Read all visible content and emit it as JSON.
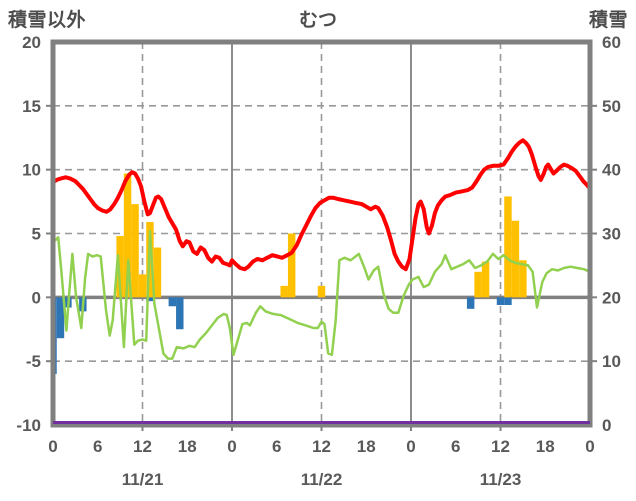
{
  "header": {
    "left_axis_title": "積雪以外",
    "title": "むつ",
    "right_axis_title": "積雪"
  },
  "colors": {
    "red_line": "#ff0000",
    "green_line": "#92d050",
    "orange_bar": "#ffc000",
    "blue_bar": "#2e75b6",
    "purple_line": "#7030a0",
    "border_gray": "#808080",
    "grid_gray": "#999999",
    "label_gray": "#595959"
  },
  "chart_data": {
    "type": "combo (line + bar), 3-day hourly weather chart",
    "left_axis": {
      "min": -10,
      "max": 20,
      "tick_interval": 5,
      "ticks": [
        "20",
        "15",
        "10",
        "5",
        "0",
        "-5",
        "-10"
      ]
    },
    "right_axis": {
      "min": 0,
      "max": 60,
      "tick_interval": 10,
      "ticks": [
        "60",
        "50",
        "40",
        "30",
        "20",
        "10",
        "0"
      ]
    },
    "x_axis": {
      "hours_span": 72,
      "hour_labels": [
        "0",
        "6",
        "12",
        "18",
        "0",
        "6",
        "12",
        "18",
        "0",
        "6",
        "12",
        "18",
        "0"
      ],
      "hour_label_step": 6,
      "day_labels": [
        "11/21",
        "11/22",
        "11/23"
      ],
      "solid_gridlines_at_hours": [
        24,
        48
      ],
      "dashed_gridlines_at_hours": [
        12,
        36,
        60
      ]
    },
    "series": [
      {
        "name": "line-red",
        "type": "line",
        "axis": "left",
        "color": "#ff0000",
        "width": 4,
        "points": [
          [
            0,
            9.0
          ],
          [
            0.5,
            9.2
          ],
          [
            1,
            9.3
          ],
          [
            1.7,
            9.4
          ],
          [
            2.3,
            9.3
          ],
          [
            3,
            9.1
          ],
          [
            3.5,
            8.8
          ],
          [
            4,
            8.5
          ],
          [
            4.5,
            8.1
          ],
          [
            5,
            7.7
          ],
          [
            5.5,
            7.3
          ],
          [
            6,
            7.0
          ],
          [
            6.6,
            6.8
          ],
          [
            7.2,
            6.7
          ],
          [
            7.7,
            6.9
          ],
          [
            8.2,
            7.3
          ],
          [
            8.7,
            7.8
          ],
          [
            9.2,
            8.4
          ],
          [
            9.7,
            9.1
          ],
          [
            10.2,
            9.6
          ],
          [
            10.6,
            9.8
          ],
          [
            11,
            9.7
          ],
          [
            11.4,
            9.3
          ],
          [
            11.8,
            8.7
          ],
          [
            12.3,
            7.4
          ],
          [
            12.7,
            6.5
          ],
          [
            13,
            6.6
          ],
          [
            13.4,
            7.2
          ],
          [
            13.8,
            7.8
          ],
          [
            14.1,
            7.9
          ],
          [
            14.5,
            7.7
          ],
          [
            15,
            7.0
          ],
          [
            15.5,
            6.3
          ],
          [
            16,
            5.8
          ],
          [
            16.5,
            5.3
          ],
          [
            17,
            4.4
          ],
          [
            17.4,
            4.0
          ],
          [
            17.9,
            4.4
          ],
          [
            18.3,
            4.3
          ],
          [
            18.8,
            3.6
          ],
          [
            19.3,
            3.4
          ],
          [
            19.8,
            3.9
          ],
          [
            20.3,
            3.7
          ],
          [
            20.8,
            3.1
          ],
          [
            21.3,
            2.8
          ],
          [
            21.8,
            3.2
          ],
          [
            22.3,
            3.1
          ],
          [
            22.8,
            2.7
          ],
          [
            23.3,
            2.6
          ],
          [
            23.7,
            2.5
          ],
          [
            24,
            2.9
          ],
          [
            24.5,
            2.6
          ],
          [
            25.1,
            2.3
          ],
          [
            25.7,
            2.2
          ],
          [
            26.2,
            2.4
          ],
          [
            26.8,
            2.8
          ],
          [
            27.4,
            3.0
          ],
          [
            28.1,
            2.9
          ],
          [
            28.7,
            3.1
          ],
          [
            29.4,
            3.3
          ],
          [
            30.1,
            3.2
          ],
          [
            30.7,
            3.1
          ],
          [
            31.4,
            3.3
          ],
          [
            32,
            3.5
          ],
          [
            32.7,
            4.1
          ],
          [
            33.3,
            4.9
          ],
          [
            34,
            5.7
          ],
          [
            34.6,
            6.4
          ],
          [
            35.2,
            7.0
          ],
          [
            35.8,
            7.4
          ],
          [
            36.4,
            7.6
          ],
          [
            37,
            7.8
          ],
          [
            37.6,
            7.8
          ],
          [
            38.2,
            7.7
          ],
          [
            39,
            7.6
          ],
          [
            39.8,
            7.5
          ],
          [
            40.6,
            7.4
          ],
          [
            41.4,
            7.3
          ],
          [
            42,
            7.1
          ],
          [
            42.6,
            6.9
          ],
          [
            43.2,
            7.1
          ],
          [
            43.6,
            7.0
          ],
          [
            44.2,
            6.4
          ],
          [
            44.8,
            5.5
          ],
          [
            45.3,
            4.5
          ],
          [
            45.8,
            3.4
          ],
          [
            46.3,
            2.8
          ],
          [
            46.8,
            2.4
          ],
          [
            47.3,
            2.2
          ],
          [
            47.8,
            3.0
          ],
          [
            48.2,
            4.6
          ],
          [
            48.6,
            6.2
          ],
          [
            49,
            7.3
          ],
          [
            49.3,
            7.5
          ],
          [
            49.7,
            6.9
          ],
          [
            50.1,
            5.5
          ],
          [
            50.4,
            5.0
          ],
          [
            50.8,
            5.6
          ],
          [
            51.2,
            6.6
          ],
          [
            51.6,
            7.2
          ],
          [
            52.1,
            7.6
          ],
          [
            52.6,
            7.9
          ],
          [
            53.2,
            8.0
          ],
          [
            54,
            8.2
          ],
          [
            54.8,
            8.3
          ],
          [
            55.6,
            8.4
          ],
          [
            56.2,
            8.6
          ],
          [
            56.8,
            9.1
          ],
          [
            57.3,
            9.6
          ],
          [
            57.8,
            10.0
          ],
          [
            58.3,
            10.2
          ],
          [
            59,
            10.3
          ],
          [
            59.7,
            10.3
          ],
          [
            60.4,
            10.4
          ],
          [
            61,
            10.9
          ],
          [
            61.5,
            11.4
          ],
          [
            62,
            11.8
          ],
          [
            62.5,
            12.1
          ],
          [
            63,
            12.3
          ],
          [
            63.4,
            12.1
          ],
          [
            63.8,
            11.8
          ],
          [
            64.2,
            11.2
          ],
          [
            64.7,
            10.2
          ],
          [
            65.1,
            9.5
          ],
          [
            65.4,
            9.2
          ],
          [
            65.8,
            9.7
          ],
          [
            66.1,
            10.2
          ],
          [
            66.4,
            10.4
          ],
          [
            66.8,
            10.0
          ],
          [
            67.1,
            9.7
          ],
          [
            67.5,
            9.9
          ],
          [
            68,
            10.2
          ],
          [
            68.5,
            10.4
          ],
          [
            69,
            10.3
          ],
          [
            69.6,
            10.1
          ],
          [
            70.1,
            9.9
          ],
          [
            70.6,
            9.5
          ],
          [
            71.1,
            9.1
          ],
          [
            71.6,
            8.8
          ],
          [
            72,
            8.5
          ]
        ]
      },
      {
        "name": "line-green",
        "type": "line",
        "axis": "left",
        "color": "#92d050",
        "width": 2.5,
        "points": [
          [
            0,
            4.3
          ],
          [
            0.7,
            4.7
          ],
          [
            1.1,
            2.2
          ],
          [
            1.8,
            -2.6
          ],
          [
            2.2,
            0.5
          ],
          [
            2.6,
            3.4
          ],
          [
            3.1,
            0.0
          ],
          [
            3.8,
            -2.4
          ],
          [
            4.3,
            1.5
          ],
          [
            4.7,
            3.4
          ],
          [
            5.3,
            3.2
          ],
          [
            5.9,
            3.3
          ],
          [
            6.4,
            3.2
          ],
          [
            7.1,
            -1.0
          ],
          [
            7.6,
            -3.0
          ],
          [
            8.0,
            -1.8
          ],
          [
            8.7,
            3.3
          ],
          [
            9.5,
            -3.9
          ],
          [
            10.1,
            2.9
          ],
          [
            10.9,
            -3.7
          ],
          [
            11.4,
            -3.4
          ],
          [
            12.0,
            -3.3
          ],
          [
            12.5,
            -3.4
          ],
          [
            13.0,
            5.2
          ],
          [
            13.6,
            -0.5
          ],
          [
            14.0,
            -1.8
          ],
          [
            14.8,
            -4.4
          ],
          [
            15.4,
            -4.8
          ],
          [
            16.0,
            -4.8
          ],
          [
            16.6,
            -3.9
          ],
          [
            17.5,
            -4.0
          ],
          [
            18.3,
            -3.8
          ],
          [
            19.0,
            -3.9
          ],
          [
            19.7,
            -3.3
          ],
          [
            20.5,
            -2.8
          ],
          [
            21.3,
            -2.2
          ],
          [
            22.1,
            -1.6
          ],
          [
            22.9,
            -1.3
          ],
          [
            23.3,
            -1.4
          ],
          [
            23.7,
            -2.4
          ],
          [
            24.2,
            -4.5
          ],
          [
            24.7,
            -3.5
          ],
          [
            25.4,
            -2.1
          ],
          [
            26.0,
            -2.0
          ],
          [
            26.4,
            -2.2
          ],
          [
            27.2,
            -1.2
          ],
          [
            27.8,
            -0.7
          ],
          [
            28.5,
            -1.1
          ],
          [
            29.5,
            -1.3
          ],
          [
            30.6,
            -1.4
          ],
          [
            31.7,
            -1.7
          ],
          [
            32.8,
            -2.0
          ],
          [
            33.9,
            -2.2
          ],
          [
            34.9,
            -2.4
          ],
          [
            35.5,
            -2.4
          ],
          [
            36.0,
            -1.9
          ],
          [
            36.4,
            -2.1
          ],
          [
            36.9,
            -4.4
          ],
          [
            37.4,
            -4.5
          ],
          [
            37.9,
            -1.8
          ],
          [
            38.4,
            2.9
          ],
          [
            39.1,
            3.1
          ],
          [
            39.9,
            2.9
          ],
          [
            41.0,
            3.4
          ],
          [
            41.7,
            2.4
          ],
          [
            42.3,
            1.4
          ],
          [
            43.0,
            2.1
          ],
          [
            43.6,
            2.4
          ],
          [
            44.3,
            0.3
          ],
          [
            45.0,
            -0.9
          ],
          [
            45.6,
            -1.2
          ],
          [
            46.3,
            -1.2
          ],
          [
            47.0,
            0.1
          ],
          [
            47.7,
            1.0
          ],
          [
            48.2,
            1.4
          ],
          [
            49.0,
            1.6
          ],
          [
            49.7,
            0.8
          ],
          [
            50.4,
            1.0
          ],
          [
            51.2,
            2.0
          ],
          [
            52.1,
            2.6
          ],
          [
            52.6,
            3.3
          ],
          [
            53.4,
            2.2
          ],
          [
            54.2,
            2.4
          ],
          [
            55.0,
            2.6
          ],
          [
            55.8,
            2.9
          ],
          [
            56.6,
            2.3
          ],
          [
            57.4,
            2.5
          ],
          [
            58.2,
            2.8
          ],
          [
            59.0,
            3.4
          ],
          [
            59.7,
            3.0
          ],
          [
            60.4,
            3.3
          ],
          [
            61.2,
            2.9
          ],
          [
            62.0,
            2.7
          ],
          [
            62.9,
            2.6
          ],
          [
            63.7,
            2.5
          ],
          [
            64.3,
            2.0
          ],
          [
            64.9,
            -0.8
          ],
          [
            65.6,
            1.2
          ],
          [
            66.2,
            1.9
          ],
          [
            66.9,
            2.2
          ],
          [
            67.7,
            2.1
          ],
          [
            68.5,
            2.3
          ],
          [
            69.4,
            2.4
          ],
          [
            70.3,
            2.3
          ],
          [
            71.2,
            2.2
          ],
          [
            72,
            2.0
          ]
        ]
      },
      {
        "name": "bars-orange",
        "type": "bar",
        "axis": "left",
        "color": "#ffc000",
        "bars": [
          [
            9,
            4.8
          ],
          [
            10,
            9.7
          ],
          [
            11,
            7.3
          ],
          [
            12,
            1.8
          ],
          [
            13,
            5.9
          ],
          [
            14,
            3.9
          ],
          [
            31,
            0.9
          ],
          [
            32,
            5.0
          ],
          [
            36,
            0.9
          ],
          [
            57,
            2.0
          ],
          [
            58,
            2.8
          ],
          [
            61,
            7.9
          ],
          [
            62,
            6.0
          ],
          [
            63,
            2.9
          ]
        ]
      },
      {
        "name": "bars-blue",
        "type": "bar",
        "axis": "left",
        "color": "#2e75b6",
        "bars": [
          [
            0,
            -6.0
          ],
          [
            1,
            -3.2
          ],
          [
            2,
            -0.8
          ],
          [
            4,
            -1.1
          ],
          [
            13,
            -0.3
          ],
          [
            16,
            -0.7
          ],
          [
            17,
            -2.5
          ],
          [
            56,
            -0.9
          ],
          [
            60,
            -0.6
          ],
          [
            61,
            -0.6
          ]
        ]
      },
      {
        "name": "line-purple",
        "type": "line",
        "axis": "right",
        "color": "#7030a0",
        "width": 3,
        "points": [
          [
            0,
            0
          ],
          [
            72,
            0
          ]
        ]
      }
    ]
  }
}
